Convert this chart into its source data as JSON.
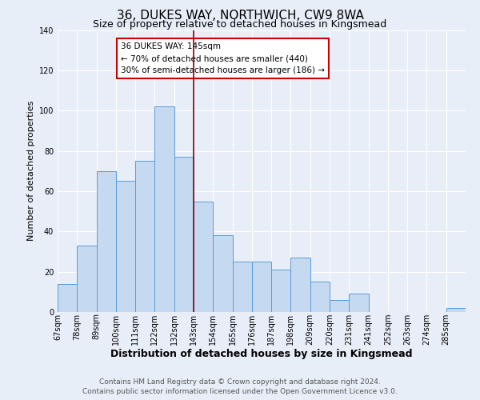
{
  "title": "36, DUKES WAY, NORTHWICH, CW9 8WA",
  "subtitle": "Size of property relative to detached houses in Kingsmead",
  "xlabel": "Distribution of detached houses by size in Kingsmead",
  "ylabel": "Number of detached properties",
  "bin_labels": [
    "67sqm",
    "78sqm",
    "89sqm",
    "100sqm",
    "111sqm",
    "122sqm",
    "132sqm",
    "143sqm",
    "154sqm",
    "165sqm",
    "176sqm",
    "187sqm",
    "198sqm",
    "209sqm",
    "220sqm",
    "231sqm",
    "241sqm",
    "252sqm",
    "263sqm",
    "274sqm",
    "285sqm"
  ],
  "bar_values": [
    14,
    33,
    70,
    65,
    75,
    102,
    77,
    55,
    38,
    25,
    25,
    21,
    27,
    15,
    6,
    9,
    0,
    0,
    0,
    0,
    2
  ],
  "bar_color": "#c5d9f0",
  "bar_edge_color": "#5b9bd5",
  "vline_x_index": 7,
  "vline_color": "#8b0000",
  "ylim": [
    0,
    140
  ],
  "yticks": [
    0,
    20,
    40,
    60,
    80,
    100,
    120,
    140
  ],
  "annotation_title": "36 DUKES WAY: 145sqm",
  "annotation_line1": "← 70% of detached houses are smaller (440)",
  "annotation_line2": "30% of semi-detached houses are larger (186) →",
  "annotation_box_facecolor": "#ffffff",
  "annotation_box_edgecolor": "#cc0000",
  "footer_line1": "Contains HM Land Registry data © Crown copyright and database right 2024.",
  "footer_line2": "Contains public sector information licensed under the Open Government Licence v3.0.",
  "background_color": "#e8eef8",
  "plot_bg_color": "#e8eef8",
  "grid_color": "#ffffff",
  "title_fontsize": 11,
  "subtitle_fontsize": 9,
  "xlabel_fontsize": 9,
  "ylabel_fontsize": 8,
  "tick_fontsize": 7,
  "footer_fontsize": 6.5
}
